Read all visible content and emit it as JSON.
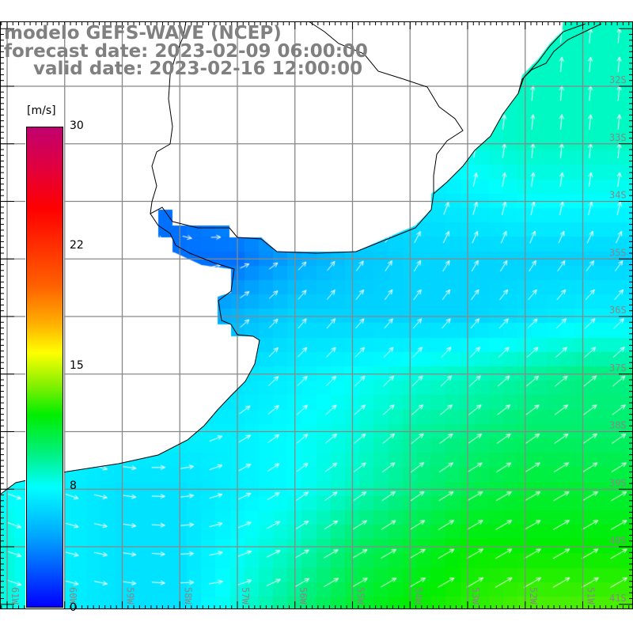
{
  "title": {
    "model": "modelo GEFS-WAVE (NCEP)",
    "forecast": "forecast date: 2023-02-09 06:00:00",
    "valid": "valid date: 2023-02-16 12:00:00"
  },
  "colorbar": {
    "unit": "[m/s]",
    "ticks": [
      "30",
      "22",
      "15",
      "8",
      "0"
    ],
    "tick_values": [
      30,
      22,
      15,
      8,
      0
    ],
    "range": [
      0,
      30
    ]
  },
  "axes": {
    "lat_labels": [
      "32S",
      "33S",
      "34S",
      "35S",
      "36S",
      "37S",
      "38S",
      "39S",
      "40S",
      "41S"
    ],
    "lon_labels": [
      "61W",
      "60W",
      "59W",
      "58W",
      "57W",
      "56W",
      "55W",
      "54W",
      "53W",
      "52W",
      "51W"
    ]
  },
  "field": {
    "lats": [
      31,
      32,
      33,
      34,
      35,
      36,
      37,
      38,
      39,
      40,
      41
    ],
    "lons": [
      61,
      60,
      59,
      58,
      57,
      56,
      55,
      54,
      53,
      52,
      51,
      50
    ],
    "speed_ms": [
      [
        6,
        6,
        6,
        6,
        6,
        6,
        6,
        7,
        8,
        8.5,
        8.5,
        8.5
      ],
      [
        6,
        6,
        6,
        6,
        6,
        6,
        6,
        7,
        8,
        8.5,
        8.5,
        8.5
      ],
      [
        4,
        4,
        4,
        4,
        4,
        5,
        6,
        7,
        8,
        8.5,
        8.5,
        8.5
      ],
      [
        3,
        3,
        3,
        3,
        4,
        5,
        6,
        6.5,
        7,
        7.5,
        7.5,
        7.5
      ],
      [
        3,
        3,
        3,
        3,
        3,
        4.5,
        5.5,
        6,
        6,
        6,
        6,
        6
      ],
      [
        4,
        4,
        4,
        4,
        5,
        6,
        6,
        6,
        6,
        6.5,
        7,
        7
      ],
      [
        6,
        6,
        6,
        6,
        6.5,
        7,
        7.5,
        8,
        8.5,
        9,
        9.5,
        9.5
      ],
      [
        7,
        7,
        7,
        7,
        7,
        7.5,
        8,
        9,
        9.5,
        10,
        10,
        10
      ],
      [
        7.5,
        7,
        6.5,
        6.5,
        7,
        7.5,
        8.5,
        9.5,
        10.5,
        11,
        11,
        11
      ],
      [
        8,
        7,
        6.5,
        6.5,
        7.5,
        8.5,
        10,
        11,
        12,
        12,
        12,
        12
      ],
      [
        8,
        7,
        6.5,
        6.5,
        8,
        9.5,
        11,
        12,
        12.5,
        13,
        13,
        13
      ]
    ],
    "direction_to_deg": [
      [
        180,
        180,
        180,
        180,
        180,
        150,
        60,
        20,
        10,
        5,
        5,
        5
      ],
      [
        180,
        180,
        180,
        180,
        180,
        150,
        60,
        20,
        10,
        5,
        5,
        5
      ],
      [
        180,
        180,
        180,
        180,
        150,
        90,
        45,
        20,
        10,
        5,
        5,
        5
      ],
      [
        180,
        180,
        170,
        120,
        90,
        60,
        40,
        25,
        15,
        10,
        10,
        10
      ],
      [
        150,
        150,
        130,
        100,
        70,
        45,
        35,
        30,
        30,
        30,
        35,
        35
      ],
      [
        120,
        120,
        110,
        80,
        50,
        40,
        40,
        40,
        40,
        45,
        45,
        45
      ],
      [
        110,
        110,
        100,
        70,
        45,
        45,
        45,
        45,
        45,
        50,
        50,
        50
      ],
      [
        110,
        110,
        100,
        80,
        60,
        50,
        50,
        50,
        55,
        55,
        55,
        55
      ],
      [
        110,
        110,
        100,
        85,
        65,
        55,
        55,
        55,
        60,
        60,
        60,
        60
      ],
      [
        110,
        105,
        100,
        90,
        70,
        60,
        60,
        60,
        60,
        60,
        60,
        60
      ],
      [
        110,
        105,
        100,
        90,
        75,
        60,
        60,
        60,
        60,
        60,
        60,
        60
      ]
    ]
  }
}
